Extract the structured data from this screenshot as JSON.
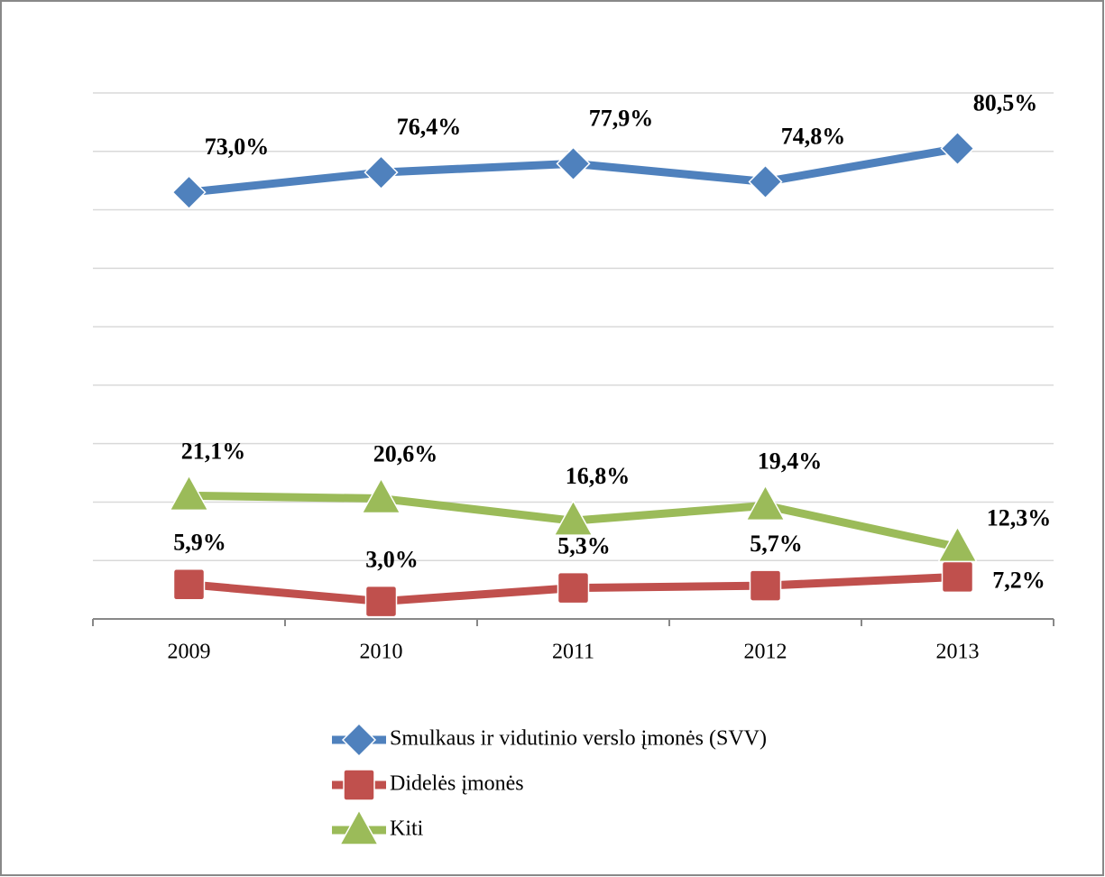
{
  "chart_data": {
    "type": "line",
    "categories": [
      "2009",
      "2010",
      "2011",
      "2012",
      "2013"
    ],
    "ylim": [
      0,
      90
    ],
    "yticks": [
      0,
      10,
      20,
      30,
      40,
      50,
      60,
      70,
      80,
      90
    ],
    "grid": true,
    "legend": "bottom",
    "series": [
      {
        "name": "Smulkaus ir vidutinio verslo įmonės (SVV)",
        "color": "#4f81bd",
        "marker": "diamond",
        "values": [
          73.0,
          76.4,
          77.9,
          74.8,
          80.5
        ],
        "value_labels": [
          "73,0%",
          "76,4%",
          "77,9%",
          "74,8%",
          "80,5%"
        ]
      },
      {
        "name": "Didelės įmonės",
        "color": "#c0504d",
        "marker": "square",
        "values": [
          5.9,
          3.0,
          5.3,
          5.7,
          7.2
        ],
        "value_labels": [
          "5,9%",
          "3,0%",
          "5,3%",
          "5,7%",
          "7,2%"
        ]
      },
      {
        "name": "Kiti",
        "color": "#9bbb59",
        "marker": "triangle",
        "values": [
          21.1,
          20.6,
          16.8,
          19.4,
          12.3
        ],
        "value_labels": [
          "21,1%",
          "20,6%",
          "16,8%",
          "19,4%",
          "12,3%"
        ]
      }
    ]
  }
}
